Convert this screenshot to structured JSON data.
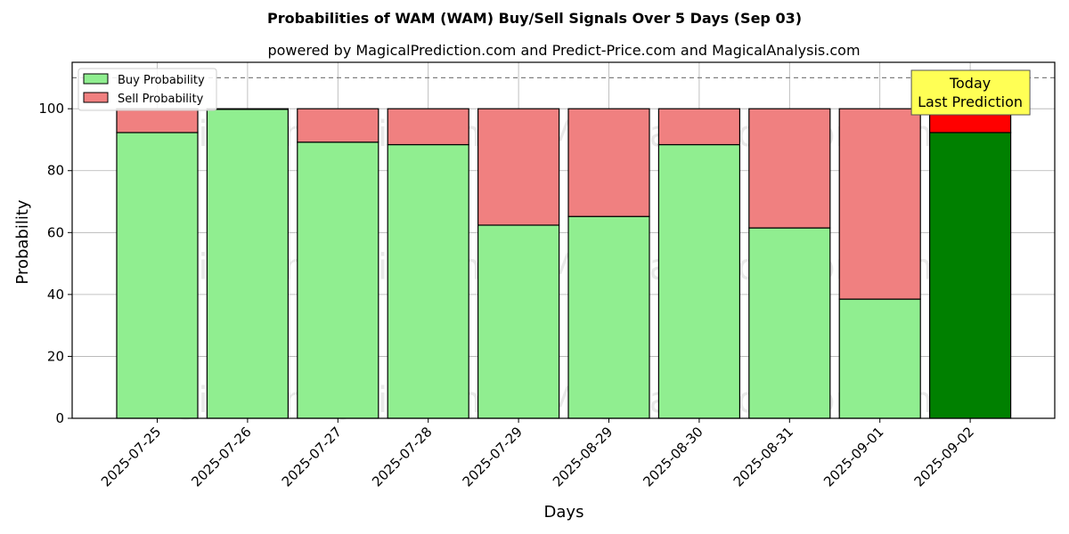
{
  "chart_data": {
    "type": "bar",
    "stacked": true,
    "title": "Probabilities of WAM (WAM) Buy/Sell Signals Over 5 Days (Sep 03)",
    "subtitle": "powered by MagicalPrediction.com and Predict-Price.com and MagicalAnalysis.com",
    "xlabel": "Days",
    "ylabel": "Probability",
    "ylim": [
      0,
      115
    ],
    "yticks": [
      0,
      20,
      40,
      60,
      80,
      100
    ],
    "grid": true,
    "threshold_line": 110,
    "categories": [
      "2025-07-25",
      "2025-07-26",
      "2025-07-27",
      "2025-07-28",
      "2025-07-29",
      "2025-08-29",
      "2025-08-30",
      "2025-08-31",
      "2025-09-01",
      "2025-09-02"
    ],
    "series": [
      {
        "name": "Buy Probability",
        "values": [
          92.3,
          99.8,
          89.2,
          88.4,
          62.4,
          65.2,
          88.4,
          61.5,
          38.5,
          92.3
        ]
      },
      {
        "name": "Sell Probability",
        "values": [
          7.7,
          0.2,
          10.8,
          11.6,
          37.6,
          34.8,
          11.6,
          38.5,
          61.5,
          7.7
        ]
      }
    ],
    "legend": {
      "position": "top-left",
      "entries": [
        "Buy Probability",
        "Sell Probability"
      ]
    },
    "annotation": {
      "category": "2025-09-02",
      "lines": [
        "Today",
        "Last Prediction"
      ]
    },
    "watermarks": [
      "MagicalAnalysis.com",
      "MagicalPrediction.com"
    ],
    "colors": {
      "buy": "#90ee90",
      "sell": "#f08080",
      "buy_highlight": "#008000",
      "sell_highlight": "#ff0000",
      "annotation_bg": "#ffff55",
      "grid": "#b0b0b0"
    }
  }
}
